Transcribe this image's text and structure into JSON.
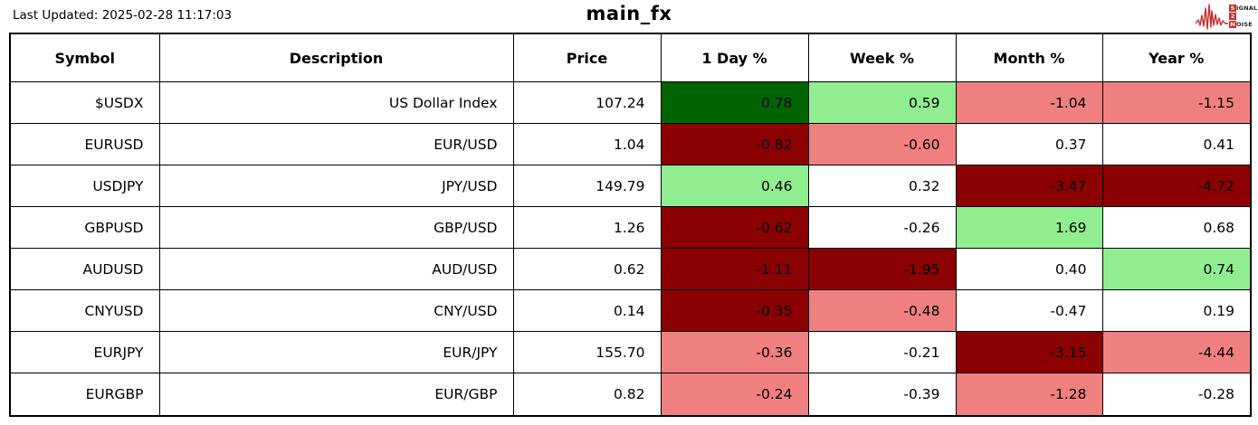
{
  "meta": {
    "last_updated": "Last Updated: 2025-02-28 11:17:03",
    "title": "main_fx"
  },
  "logo": {
    "line1_initial": "S",
    "line1_rest": "IGNAL",
    "line2_initial": "2",
    "line2_rest": "",
    "line3_initial": "N",
    "line3_rest": "OISE",
    "accent_color": "#c62f2f"
  },
  "colors": {
    "green_strong": "#006400",
    "green_light": "#90ee90",
    "red_light": "#f08080",
    "red_strong": "#8b0000",
    "none": "#ffffff"
  },
  "chart_data": {
    "type": "table",
    "title": "main_fx",
    "columns": [
      "Symbol",
      "Description",
      "Price",
      "1 Day %",
      "Week %",
      "Month %",
      "Year %"
    ],
    "rows": [
      {
        "symbol": "$USDX",
        "description": "US Dollar Index",
        "price": "107.24",
        "pcts": [
          {
            "v": "0.78",
            "c": "green_strong"
          },
          {
            "v": "0.59",
            "c": "green_light"
          },
          {
            "v": "-1.04",
            "c": "red_light"
          },
          {
            "v": "-1.15",
            "c": "red_light"
          }
        ]
      },
      {
        "symbol": "EURUSD",
        "description": "EUR/USD",
        "price": "1.04",
        "pcts": [
          {
            "v": "-0.82",
            "c": "red_strong"
          },
          {
            "v": "-0.60",
            "c": "red_light"
          },
          {
            "v": "0.37",
            "c": "none"
          },
          {
            "v": "0.41",
            "c": "none"
          }
        ]
      },
      {
        "symbol": "USDJPY",
        "description": "JPY/USD",
        "price": "149.79",
        "pcts": [
          {
            "v": "0.46",
            "c": "green_light"
          },
          {
            "v": "0.32",
            "c": "none"
          },
          {
            "v": "-3.47",
            "c": "red_strong"
          },
          {
            "v": "-4.72",
            "c": "red_strong"
          }
        ]
      },
      {
        "symbol": "GBPUSD",
        "description": "GBP/USD",
        "price": "1.26",
        "pcts": [
          {
            "v": "-0.62",
            "c": "red_strong"
          },
          {
            "v": "-0.26",
            "c": "none"
          },
          {
            "v": "1.69",
            "c": "green_light"
          },
          {
            "v": "0.68",
            "c": "none"
          }
        ]
      },
      {
        "symbol": "AUDUSD",
        "description": "AUD/USD",
        "price": "0.62",
        "pcts": [
          {
            "v": "-1.11",
            "c": "red_strong"
          },
          {
            "v": "-1.95",
            "c": "red_strong"
          },
          {
            "v": "0.40",
            "c": "none"
          },
          {
            "v": "0.74",
            "c": "green_light"
          }
        ]
      },
      {
        "symbol": "CNYUSD",
        "description": "CNY/USD",
        "price": "0.14",
        "pcts": [
          {
            "v": "-0.35",
            "c": "red_strong"
          },
          {
            "v": "-0.48",
            "c": "red_light"
          },
          {
            "v": "-0.47",
            "c": "none"
          },
          {
            "v": "0.19",
            "c": "none"
          }
        ]
      },
      {
        "symbol": "EURJPY",
        "description": "EUR/JPY",
        "price": "155.70",
        "pcts": [
          {
            "v": "-0.36",
            "c": "red_light"
          },
          {
            "v": "-0.21",
            "c": "none"
          },
          {
            "v": "-3.15",
            "c": "red_strong"
          },
          {
            "v": "-4.44",
            "c": "red_light"
          }
        ]
      },
      {
        "symbol": "EURGBP",
        "description": "EUR/GBP",
        "price": "0.82",
        "pcts": [
          {
            "v": "-0.24",
            "c": "red_light"
          },
          {
            "v": "-0.39",
            "c": "none"
          },
          {
            "v": "-1.28",
            "c": "red_light"
          },
          {
            "v": "-0.28",
            "c": "none"
          }
        ]
      }
    ]
  }
}
